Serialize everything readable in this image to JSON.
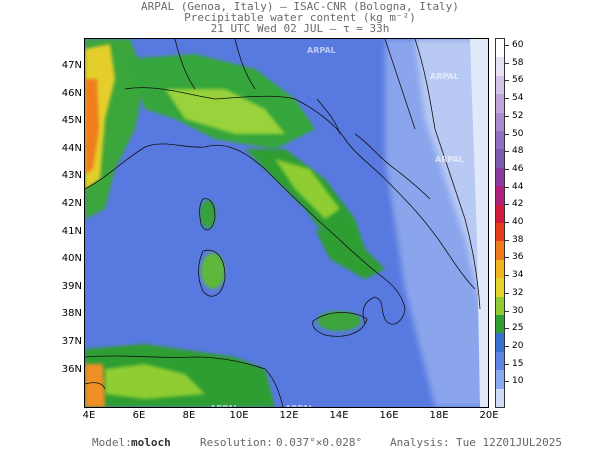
{
  "header": {
    "line1": "ARPAL (Genoa, Italy)  —  ISAC-CNR (Bologna, Italy)",
    "line2": "Precipitable water content (kg m⁻²)",
    "line3": "21 UTC Wed 02 JUL  —  τ = 33h"
  },
  "map": {
    "lat_labels": [
      "47N",
      "46N",
      "45N",
      "44N",
      "43N",
      "42N",
      "41N",
      "40N",
      "39N",
      "38N",
      "37N",
      "36N"
    ],
    "lon_labels": [
      "4E",
      "6E",
      "8E",
      "10E",
      "12E",
      "14E",
      "16E",
      "18E",
      "20E"
    ],
    "watermark": "ARPAL"
  },
  "colorbar": {
    "ticks": [
      "60",
      "58",
      "56",
      "54",
      "52",
      "50",
      "48",
      "46",
      "44",
      "42",
      "40",
      "38",
      "36",
      "34",
      "32",
      "30",
      "25",
      "20",
      "15",
      "10"
    ],
    "colors": [
      "#ffffff",
      "#e9e1f4",
      "#d4c5e8",
      "#bfa7dc",
      "#a98ccf",
      "#9070c0",
      "#7c5cb0",
      "#8a3aa0",
      "#b0207a",
      "#d21c3c",
      "#e53c1c",
      "#f07a1e",
      "#f3b51f",
      "#e6d42c",
      "#8fcd33",
      "#2f9e33",
      "#3a6fd0",
      "#5f86e6",
      "#8ba9ee",
      "#cfdaf7"
    ],
    "palette_name": "purple-red-orange-yellow-green-blue"
  },
  "footer": {
    "model_label": "Model:",
    "model": "moloch",
    "resolution_label": "Resolution:",
    "resolution": "0.037°×0.028°",
    "analysis_label": "Analysis:",
    "analysis": "Tue 12Z01JUL2025"
  }
}
